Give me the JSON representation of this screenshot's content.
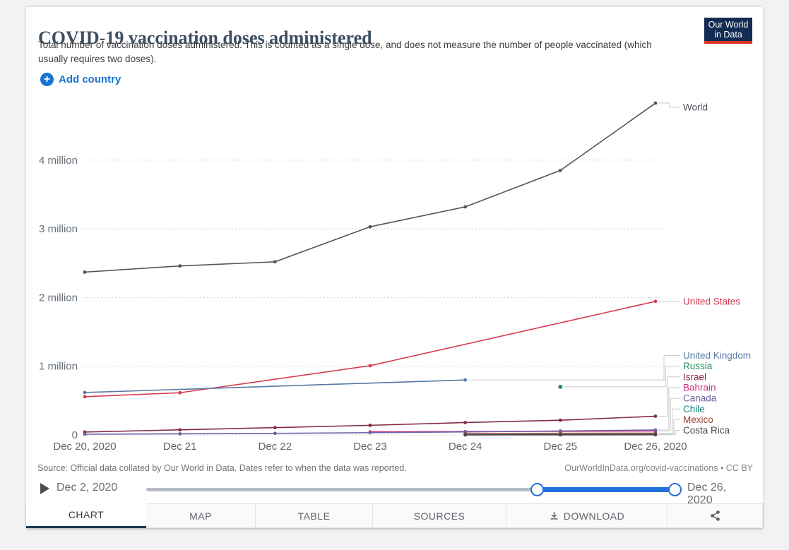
{
  "header": {
    "title": "COVID-19 vaccination doses administered",
    "subtitle": "Total number of vaccination doses administered. This is counted as a single dose, and does not measure the number of people vaccinated (which usually requires two doses).",
    "logo_line1": "Our World",
    "logo_line2": "in Data"
  },
  "controls": {
    "add_country_label": "Add country"
  },
  "colors": {
    "accent_blue": "#1575d2",
    "slider_blue": "#2270dd",
    "logo_navy": "#132c52",
    "logo_red": "#dc3326",
    "active_tab_underline": "#1b3a54",
    "gridline": "#d2d2d2",
    "axis_text": "#67707a"
  },
  "chart_data": {
    "type": "line",
    "title": "COVID-19 vaccination doses administered",
    "xlabel": "",
    "ylabel": "",
    "grid": "horizontal dashed",
    "legend_position": "right-edge series labels",
    "ylim": [
      0,
      4960000
    ],
    "x_tick_labels": [
      "Dec 20, 2020",
      "Dec 21",
      "Dec 22",
      "Dec 23",
      "Dec 24",
      "Dec 25",
      "Dec 26, 2020"
    ],
    "y_ticks": [
      {
        "label": "0",
        "value": 0
      },
      {
        "label": "1 million",
        "value": 1000000
      },
      {
        "label": "2 million",
        "value": 2000000
      },
      {
        "label": "3 million",
        "value": 3000000
      },
      {
        "label": "4 million",
        "value": 4000000
      }
    ],
    "series": [
      {
        "name": "World",
        "color": "#4e555e",
        "points": [
          {
            "x": "Dec 20, 2020",
            "y": 2370000
          },
          {
            "x": "Dec 21",
            "y": 2460000
          },
          {
            "x": "Dec 22",
            "y": 2520000
          },
          {
            "x": "Dec 23",
            "y": 3030000
          },
          {
            "x": "Dec 24",
            "y": 3320000
          },
          {
            "x": "Dec 25",
            "y": 3850000
          },
          {
            "x": "Dec 26, 2020",
            "y": 4830000
          }
        ]
      },
      {
        "name": "United States",
        "color": "#d73a4f",
        "points": [
          {
            "x": "Dec 20, 2020",
            "y": 556000
          },
          {
            "x": "Dec 21",
            "y": 614000
          },
          {
            "x": "Dec 23",
            "y": 1008000
          },
          {
            "x": "Dec 26, 2020",
            "y": 1944000
          }
        ]
      },
      {
        "name": "United Kingdom",
        "color": "#5779a3",
        "points": [
          {
            "x": "Dec 20, 2020",
            "y": 617000
          },
          {
            "x": "Dec 24",
            "y": 800000
          }
        ]
      },
      {
        "name": "Russia",
        "color": "#1f8e55",
        "points": [
          {
            "x": "Dec 25",
            "y": 700000
          }
        ]
      },
      {
        "name": "Israel",
        "color": "#832c3f",
        "points": [
          {
            "x": "Dec 20, 2020",
            "y": 42000
          },
          {
            "x": "Dec 21",
            "y": 74000
          },
          {
            "x": "Dec 22",
            "y": 106000
          },
          {
            "x": "Dec 23",
            "y": 140000
          },
          {
            "x": "Dec 24",
            "y": 180000
          },
          {
            "x": "Dec 25",
            "y": 214000
          },
          {
            "x": "Dec 26, 2020",
            "y": 272000
          }
        ]
      },
      {
        "name": "Bahrain",
        "color": "#cf2d7e",
        "points": [
          {
            "x": "Dec 23",
            "y": 44000
          },
          {
            "x": "Dec 24",
            "y": 49000
          },
          {
            "x": "Dec 25",
            "y": 52000
          },
          {
            "x": "Dec 26, 2020",
            "y": 57000
          }
        ]
      },
      {
        "name": "Canada",
        "color": "#6e62a8",
        "points": [
          {
            "x": "Dec 20, 2020",
            "y": 10000
          },
          {
            "x": "Dec 21",
            "y": 16000
          },
          {
            "x": "Dec 22",
            "y": 22000
          },
          {
            "x": "Dec 23",
            "y": 33000
          },
          {
            "x": "Dec 24",
            "y": 44000
          },
          {
            "x": "Dec 25",
            "y": 57000
          },
          {
            "x": "Dec 26, 2020",
            "y": 72000
          }
        ]
      },
      {
        "name": "Chile",
        "color": "#13837d",
        "points": [
          {
            "x": "Dec 24",
            "y": 420
          },
          {
            "x": "Dec 25",
            "y": 5200
          },
          {
            "x": "Dec 26, 2020",
            "y": 8600
          }
        ]
      },
      {
        "name": "Mexico",
        "color": "#9c4336",
        "points": [
          {
            "x": "Dec 24",
            "y": 18500
          },
          {
            "x": "Dec 25",
            "y": 24000
          },
          {
            "x": "Dec 26, 2020",
            "y": 25000
          }
        ]
      },
      {
        "name": "Costa Rica",
        "color": "#4a4550",
        "points": [
          {
            "x": "Dec 24",
            "y": 100
          },
          {
            "x": "Dec 25",
            "y": 1000
          },
          {
            "x": "Dec 26, 2020",
            "y": 2000
          }
        ]
      }
    ]
  },
  "footer": {
    "source_note": "Source: Official data collated by Our World in Data. Dates refer to when the data was reported.",
    "attribution": "OurWorldInData.org/covid-vaccinations • CC BY"
  },
  "timeline": {
    "start_label": "Dec 2, 2020",
    "end_label": "Dec 26, 2020"
  },
  "tabs": {
    "items": [
      {
        "label": "CHART",
        "active": true
      },
      {
        "label": "MAP",
        "active": false
      },
      {
        "label": "TABLE",
        "active": false
      },
      {
        "label": "SOURCES",
        "active": false
      },
      {
        "label": "DOWNLOAD",
        "active": false
      },
      {
        "label": "",
        "active": false,
        "icon": "share-icon"
      }
    ]
  }
}
